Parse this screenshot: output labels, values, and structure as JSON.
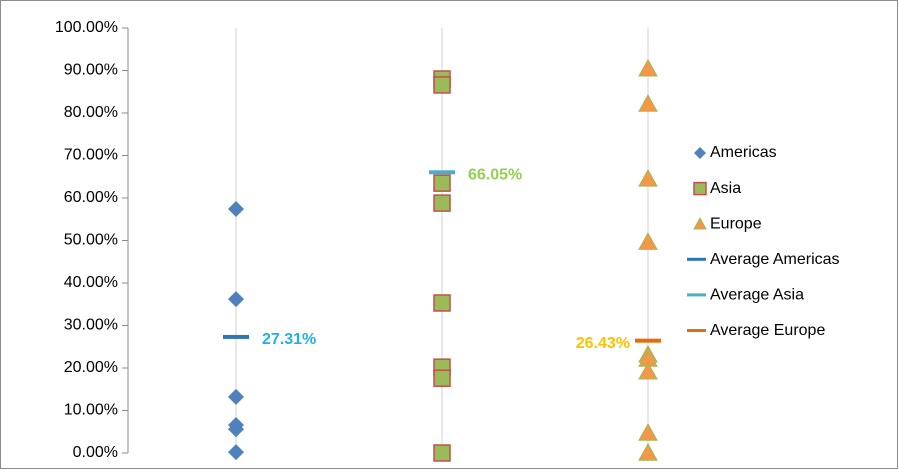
{
  "chart_data": {
    "type": "scatter",
    "ylim": [
      0,
      100
    ],
    "yticks": [
      {
        "value": 0,
        "label": "0.00%"
      },
      {
        "value": 10,
        "label": "10.00%"
      },
      {
        "value": 20,
        "label": "20.00%"
      },
      {
        "value": 30,
        "label": "30.00%"
      },
      {
        "value": 40,
        "label": "40.00%"
      },
      {
        "value": 50,
        "label": "50.00%"
      },
      {
        "value": 60,
        "label": "60.00%"
      },
      {
        "value": 70,
        "label": "70.00%"
      },
      {
        "value": 80,
        "label": "80.00%"
      },
      {
        "value": 90,
        "label": "90.00%"
      },
      {
        "value": 100,
        "label": "100.00%"
      }
    ],
    "legend": "right",
    "series": [
      {
        "name": "Americas",
        "marker": "diamond",
        "color": "#4f81bd",
        "values": [
          57.4,
          36.2,
          13.2,
          6.6,
          5.6,
          0.2
        ]
      },
      {
        "name": "Asia",
        "marker": "square",
        "color": "#9bbb59",
        "edge": "#c0504d",
        "values": [
          88,
          86.6,
          63.5,
          58.8,
          35.3,
          20.2,
          17.6,
          0
        ]
      },
      {
        "name": "Europe",
        "marker": "triangle",
        "color": "#f79646",
        "edge": "#9bbb59",
        "values": [
          90.4,
          82.1,
          64.5,
          49.6,
          23.1,
          22.1,
          19.1,
          4.7,
          0
        ]
      },
      {
        "name": "Average Americas",
        "marker": "dash",
        "color": "#2e75b6",
        "values": [
          27.31
        ],
        "value_labels": [
          "27.31%"
        ],
        "label_color": "#1fb1e6",
        "label_position": "right"
      },
      {
        "name": "Average Asia",
        "marker": "dash",
        "color": "#4bacc6",
        "values": [
          66.05
        ],
        "value_labels": [
          "66.05%"
        ],
        "label_color": "#92d050",
        "label_position": "right"
      },
      {
        "name": "Average Europe",
        "marker": "dash",
        "color": "#e46c0a",
        "values": [
          26.43
        ],
        "value_labels": [
          "26.43%"
        ],
        "label_color": "#ffc000",
        "label_position": "left"
      }
    ]
  }
}
